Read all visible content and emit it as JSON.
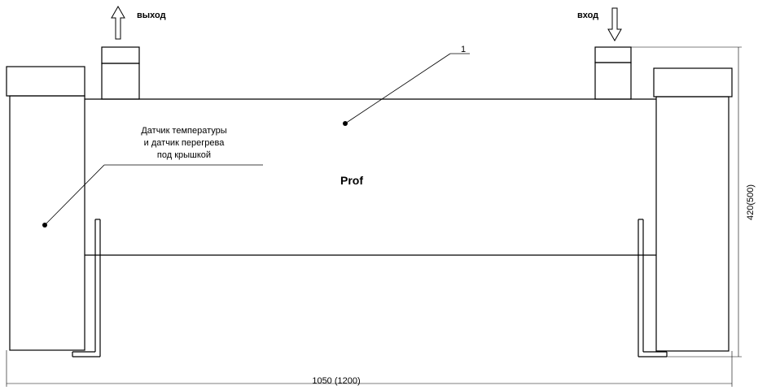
{
  "labels": {
    "outlet": "выход",
    "inlet": "вход",
    "callout_number": "1",
    "sensor_line1": "Датчик температуры",
    "sensor_line2": "и датчик перегрева",
    "sensor_line3": "под крышкой",
    "model": "Prof",
    "height_dim": "420(500)",
    "width_dim": "1050 (1200)"
  },
  "colors": {
    "line": "#000000",
    "background": "#ffffff"
  },
  "icons": {
    "outlet_arrow": "arrow-up-outline",
    "inlet_arrow": "arrow-down-outline"
  }
}
